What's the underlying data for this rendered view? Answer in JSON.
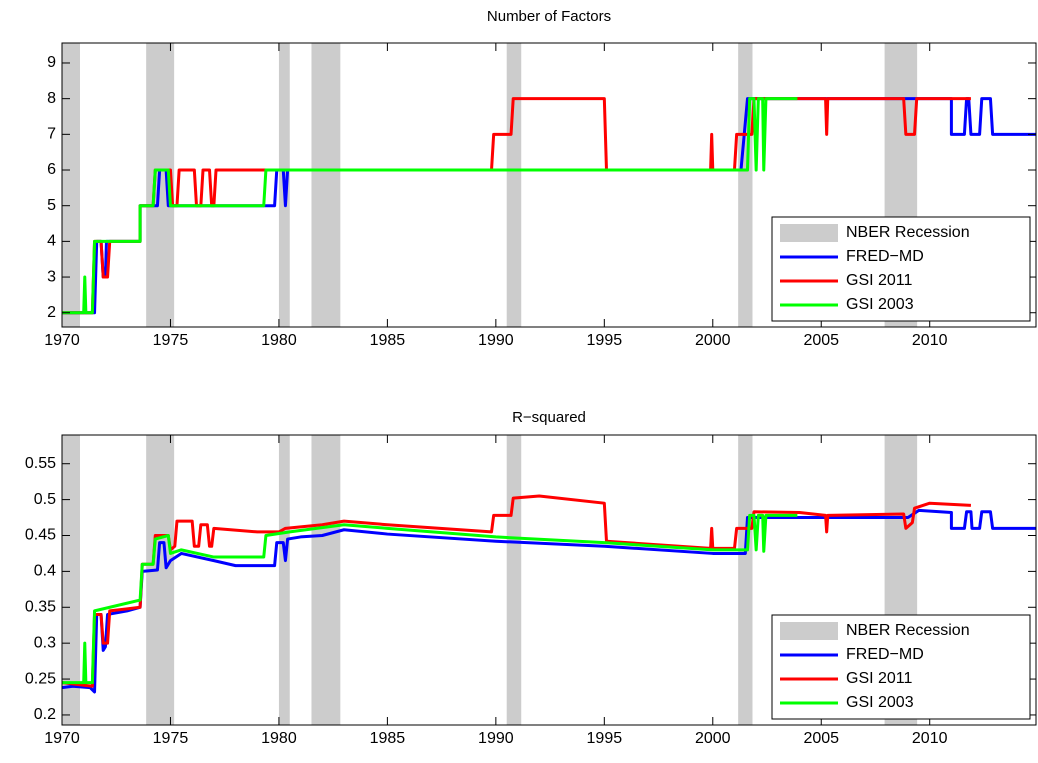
{
  "chart_data": [
    {
      "type": "line",
      "title": "Number of Factors",
      "xlim": [
        1970,
        2014.9
      ],
      "xticks": [
        1970,
        1975,
        1980,
        1985,
        1990,
        1995,
        2000,
        2005,
        2010
      ],
      "ylim": [
        1.6,
        9.56
      ],
      "yticks": [
        2,
        3,
        4,
        5,
        6,
        7,
        8,
        9
      ],
      "legend": "lower right",
      "shaded_regions": {
        "name": "NBER Recession",
        "color": "#cccccc",
        "spans": [
          [
            1969.92,
            1970.83
          ],
          [
            1973.88,
            1975.17
          ],
          [
            1980.0,
            1980.5
          ],
          [
            1981.5,
            1982.83
          ],
          [
            1990.5,
            1991.17
          ],
          [
            2001.17,
            2001.83
          ],
          [
            2007.92,
            2009.42
          ]
        ]
      },
      "series": [
        {
          "name": "FRED−MD",
          "color": "#0000ff",
          "x": [
            1970,
            1971.5,
            1971.6,
            1971.8,
            1971.9,
            1972.0,
            1972.05,
            1973.6,
            1973.6,
            1974.4,
            1974.5,
            1974.8,
            1974.9,
            1979.8,
            1979.9,
            1980.2,
            1980.3,
            1980.4,
            2001.3,
            2001.6,
            2011.0,
            2011.0,
            2011.6,
            2011.7,
            2011.8,
            2011.9,
            2012.3,
            2012.4,
            2012.8,
            2012.9,
            2014.9
          ],
          "values": [
            2,
            2,
            4,
            4,
            3,
            3,
            4,
            4,
            5,
            5,
            6,
            6,
            5,
            5,
            6,
            6,
            5,
            6,
            6,
            8,
            8,
            7,
            7,
            8,
            8,
            7,
            7,
            8,
            8,
            7,
            7
          ]
        },
        {
          "name": "GSI 2011",
          "color": "#ff0000",
          "x": [
            1970,
            1971.4,
            1971.5,
            1971.8,
            1971.9,
            1972.1,
            1972.2,
            1973.6,
            1973.6,
            1974.2,
            1974.3,
            1975.0,
            1975.1,
            1975.3,
            1975.4,
            1976.1,
            1976.2,
            1976.4,
            1976.5,
            1976.8,
            1976.9,
            1977.0,
            1977.1,
            1989.8,
            1989.9,
            1990.7,
            1990.8,
            1995.0,
            1995.1,
            1999.9,
            1999.95,
            2000.0,
            2001.0,
            2001.1,
            2001.8,
            2001.9,
            2005.2,
            2005.25,
            2005.3,
            2008.8,
            2008.9,
            2009.3,
            2009.4,
            2011.9
          ],
          "values": [
            2,
            2,
            4,
            4,
            3,
            3,
            4,
            4,
            5,
            5,
            6,
            6,
            5,
            5,
            6,
            6,
            5,
            5,
            6,
            6,
            5,
            5,
            6,
            6,
            7,
            7,
            8,
            8,
            6,
            6,
            7,
            6,
            6,
            7,
            7,
            8,
            8,
            7,
            8,
            8,
            7,
            7,
            8,
            8
          ]
        },
        {
          "name": "GSI 2003",
          "color": "#00ff00",
          "x": [
            1970,
            1971.0,
            1971.05,
            1971.1,
            1971.4,
            1971.5,
            1973.6,
            1973.6,
            1974.2,
            1974.3,
            1974.9,
            1975.0,
            1979.3,
            1979.4,
            2001.6,
            2001.7,
            2001.9,
            2002.0,
            2002.1,
            2002.3,
            2002.35,
            2002.45,
            2003.9
          ],
          "values": [
            2,
            2,
            3,
            2,
            2,
            4,
            4,
            5,
            5,
            6,
            6,
            5,
            5,
            6,
            6,
            8,
            8,
            6,
            8,
            8,
            6,
            8,
            8
          ]
        }
      ]
    },
    {
      "type": "line",
      "title": "R−squared",
      "xlim": [
        1970,
        2014.9
      ],
      "xticks": [
        1970,
        1975,
        1980,
        1985,
        1990,
        1995,
        2000,
        2005,
        2010
      ],
      "ylim": [
        0.186,
        0.59
      ],
      "yticks": [
        0.2,
        0.25,
        0.3,
        0.35,
        0.4,
        0.45,
        0.5,
        0.55
      ],
      "legend": "lower right",
      "shaded_regions": {
        "name": "NBER Recession",
        "color": "#cccccc",
        "spans": [
          [
            1969.92,
            1970.83
          ],
          [
            1973.88,
            1975.17
          ],
          [
            1980.0,
            1980.5
          ],
          [
            1981.5,
            1982.83
          ],
          [
            1990.5,
            1991.17
          ],
          [
            2001.17,
            2001.83
          ],
          [
            2007.92,
            2009.42
          ]
        ]
      },
      "series": [
        {
          "name": "FRED−MD",
          "color": "#0000ff",
          "x": [
            1970,
            1970.5,
            1971.3,
            1971.5,
            1971.6,
            1971.8,
            1971.9,
            1972.0,
            1972.1,
            1973.0,
            1973.6,
            1973.7,
            1974.4,
            1974.5,
            1974.7,
            1974.8,
            1975.0,
            1975.5,
            1977,
            1978,
            1979.8,
            1979.9,
            1980.2,
            1980.3,
            1980.4,
            1981,
            1982,
            1983,
            1985,
            1990,
            1995,
            2000,
            2001.5,
            2001.6,
            2005,
            2009,
            2009.5,
            2011,
            2011.0,
            2011.6,
            2011.7,
            2011.9,
            2011.95,
            2012.3,
            2012.4,
            2012.8,
            2012.9,
            2014.9
          ],
          "values": [
            0.238,
            0.24,
            0.238,
            0.232,
            0.34,
            0.34,
            0.29,
            0.295,
            0.34,
            0.345,
            0.35,
            0.4,
            0.402,
            0.44,
            0.44,
            0.405,
            0.415,
            0.425,
            0.415,
            0.408,
            0.408,
            0.44,
            0.44,
            0.415,
            0.445,
            0.448,
            0.45,
            0.458,
            0.452,
            0.442,
            0.435,
            0.425,
            0.425,
            0.475,
            0.475,
            0.475,
            0.485,
            0.482,
            0.46,
            0.46,
            0.483,
            0.483,
            0.46,
            0.46,
            0.483,
            0.483,
            0.46,
            0.46
          ]
        },
        {
          "name": "GSI 2011",
          "color": "#ff0000",
          "x": [
            1970,
            1971.4,
            1971.5,
            1971.8,
            1971.9,
            1972.1,
            1972.2,
            1973.6,
            1973.7,
            1974.2,
            1974.3,
            1974.9,
            1975.0,
            1975.2,
            1975.3,
            1976.0,
            1976.1,
            1976.3,
            1976.4,
            1976.7,
            1976.8,
            1976.9,
            1977.0,
            1979,
            1980,
            1980.3,
            1982,
            1983,
            1985,
            1989.8,
            1989.9,
            1990.7,
            1990.8,
            1992,
            1995,
            1995.1,
            1999.9,
            1999.95,
            2000.0,
            2001.0,
            2001.1,
            2001.8,
            2001.9,
            2004,
            2005.2,
            2005.25,
            2005.3,
            2008.8,
            2008.9,
            2009.2,
            2009.3,
            2010,
            2011.9
          ],
          "values": [
            0.245,
            0.24,
            0.34,
            0.34,
            0.3,
            0.3,
            0.345,
            0.35,
            0.41,
            0.41,
            0.45,
            0.45,
            0.43,
            0.435,
            0.47,
            0.47,
            0.435,
            0.435,
            0.465,
            0.465,
            0.435,
            0.435,
            0.46,
            0.455,
            0.455,
            0.46,
            0.465,
            0.47,
            0.465,
            0.455,
            0.478,
            0.478,
            0.502,
            0.505,
            0.495,
            0.442,
            0.432,
            0.46,
            0.432,
            0.432,
            0.46,
            0.46,
            0.483,
            0.482,
            0.478,
            0.455,
            0.478,
            0.48,
            0.46,
            0.468,
            0.488,
            0.495,
            0.492
          ]
        },
        {
          "name": "GSI 2003",
          "color": "#00ff00",
          "x": [
            1970,
            1971.0,
            1971.05,
            1971.1,
            1971.4,
            1971.5,
            1973.6,
            1973.7,
            1974.2,
            1974.3,
            1974.9,
            1975.0,
            1975.5,
            1977,
            1979.3,
            1979.4,
            1980.5,
            1983,
            1985,
            1990,
            1995,
            2000,
            2001.6,
            2001.7,
            2001.9,
            2002.0,
            2002.1,
            2002.3,
            2002.35,
            2002.45,
            2003.9
          ],
          "values": [
            0.245,
            0.245,
            0.3,
            0.245,
            0.245,
            0.345,
            0.36,
            0.41,
            0.41,
            0.445,
            0.45,
            0.425,
            0.43,
            0.42,
            0.42,
            0.45,
            0.455,
            0.465,
            0.46,
            0.448,
            0.44,
            0.43,
            0.43,
            0.478,
            0.478,
            0.43,
            0.478,
            0.478,
            0.428,
            0.478,
            0.478
          ]
        }
      ]
    }
  ]
}
